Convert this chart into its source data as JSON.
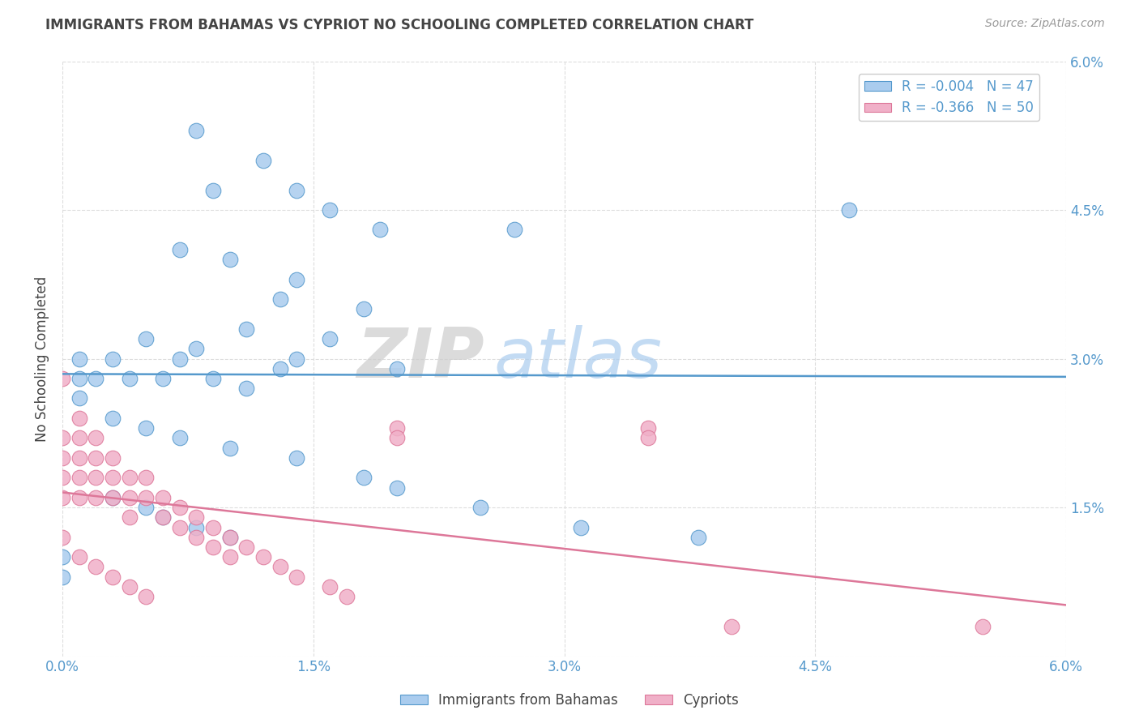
{
  "title": "IMMIGRANTS FROM BAHAMAS VS CYPRIOT NO SCHOOLING COMPLETED CORRELATION CHART",
  "source": "Source: ZipAtlas.com",
  "ylabel_label": "No Schooling Completed",
  "xlim": [
    0.0,
    0.06
  ],
  "ylim": [
    0.0,
    0.06
  ],
  "xticks": [
    0.0,
    0.015,
    0.03,
    0.045,
    0.06
  ],
  "yticks": [
    0.0,
    0.015,
    0.03,
    0.045,
    0.06
  ],
  "xticklabels": [
    "0.0%",
    "1.5%",
    "3.0%",
    "4.5%",
    "6.0%"
  ],
  "yticklabels": [
    "",
    "1.5%",
    "3.0%",
    "4.5%",
    "6.0%"
  ],
  "watermark_zip": "ZIP",
  "watermark_atlas": "atlas",
  "legend_label1": "Immigrants from Bahamas",
  "legend_label2": "Cypriots",
  "R1": "-0.004",
  "N1": "47",
  "R2": "-0.366",
  "N2": "50",
  "color_blue": "#aaccee",
  "color_pink": "#f0b0c8",
  "line_color_blue": "#5599cc",
  "line_color_pink": "#dd7799",
  "title_color": "#444444",
  "grid_color": "#dddddd",
  "tick_color": "#5599cc",
  "background": "#ffffff",
  "blue_scatter_x": [
    0.008,
    0.012,
    0.009,
    0.014,
    0.016,
    0.019,
    0.027,
    0.007,
    0.01,
    0.014,
    0.013,
    0.018,
    0.011,
    0.016,
    0.014,
    0.02,
    0.008,
    0.013,
    0.001,
    0.003,
    0.002,
    0.004,
    0.006,
    0.005,
    0.007,
    0.009,
    0.011,
    0.003,
    0.005,
    0.007,
    0.01,
    0.014,
    0.018,
    0.02,
    0.025,
    0.031,
    0.038,
    0.047,
    0.001,
    0.001,
    0.0,
    0.0,
    0.003,
    0.005,
    0.006,
    0.008,
    0.01
  ],
  "blue_scatter_y": [
    0.053,
    0.05,
    0.047,
    0.047,
    0.045,
    0.043,
    0.043,
    0.041,
    0.04,
    0.038,
    0.036,
    0.035,
    0.033,
    0.032,
    0.03,
    0.029,
    0.031,
    0.029,
    0.03,
    0.03,
    0.028,
    0.028,
    0.028,
    0.032,
    0.03,
    0.028,
    0.027,
    0.024,
    0.023,
    0.022,
    0.021,
    0.02,
    0.018,
    0.017,
    0.015,
    0.013,
    0.012,
    0.045,
    0.028,
    0.026,
    0.01,
    0.008,
    0.016,
    0.015,
    0.014,
    0.013,
    0.012
  ],
  "pink_scatter_x": [
    0.0,
    0.0,
    0.0,
    0.0,
    0.0,
    0.001,
    0.001,
    0.001,
    0.001,
    0.001,
    0.002,
    0.002,
    0.002,
    0.002,
    0.003,
    0.003,
    0.003,
    0.004,
    0.004,
    0.004,
    0.005,
    0.005,
    0.006,
    0.006,
    0.007,
    0.007,
    0.008,
    0.008,
    0.009,
    0.009,
    0.01,
    0.01,
    0.011,
    0.012,
    0.013,
    0.014,
    0.016,
    0.017,
    0.02,
    0.02,
    0.035,
    0.035,
    0.04,
    0.0,
    0.001,
    0.002,
    0.003,
    0.004,
    0.005,
    0.055
  ],
  "pink_scatter_y": [
    0.028,
    0.022,
    0.02,
    0.018,
    0.016,
    0.024,
    0.022,
    0.02,
    0.018,
    0.016,
    0.022,
    0.02,
    0.018,
    0.016,
    0.02,
    0.018,
    0.016,
    0.018,
    0.016,
    0.014,
    0.018,
    0.016,
    0.016,
    0.014,
    0.015,
    0.013,
    0.014,
    0.012,
    0.013,
    0.011,
    0.012,
    0.01,
    0.011,
    0.01,
    0.009,
    0.008,
    0.007,
    0.006,
    0.023,
    0.022,
    0.023,
    0.022,
    0.003,
    0.012,
    0.01,
    0.009,
    0.008,
    0.007,
    0.006,
    0.003
  ]
}
